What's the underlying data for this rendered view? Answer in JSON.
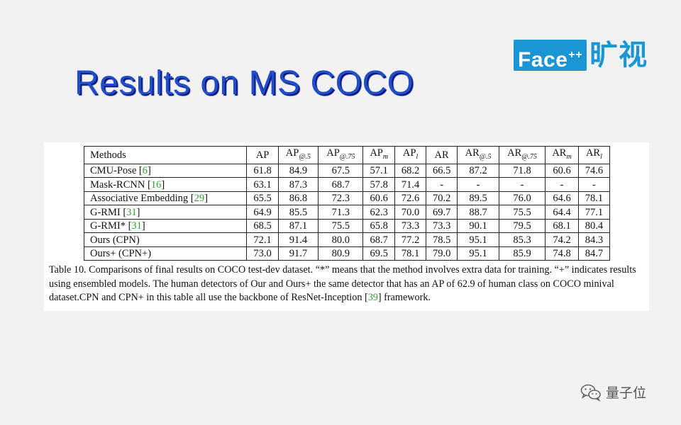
{
  "brand": {
    "face_text": "Face",
    "face_sup": "++",
    "cn_text": "旷视",
    "color": "#1a96d4"
  },
  "title": "Results on MS COCO",
  "table": {
    "headers": [
      {
        "base": "Methods",
        "sub": ""
      },
      {
        "base": "AP",
        "sub": ""
      },
      {
        "base": "AP",
        "sub": "@.5"
      },
      {
        "base": "AP",
        "sub": "@.75"
      },
      {
        "base": "AP",
        "sub": "m"
      },
      {
        "base": "AP",
        "sub": "l"
      },
      {
        "base": "AR",
        "sub": ""
      },
      {
        "base": "AR",
        "sub": "@.5"
      },
      {
        "base": "AR",
        "sub": "@.75"
      },
      {
        "base": "AR",
        "sub": "m"
      },
      {
        "base": "AR",
        "sub": "l"
      }
    ],
    "rows": [
      {
        "method": "CMU-Pose",
        "cite": "6",
        "values": [
          "61.8",
          "84.9",
          "67.5",
          "57.1",
          "68.2",
          "66.5",
          "87.2",
          "71.8",
          "60.6",
          "74.6"
        ]
      },
      {
        "method": "Mask-RCNN",
        "cite": "16",
        "values": [
          "63.1",
          "87.3",
          "68.7",
          "57.8",
          "71.4",
          "-",
          "-",
          "-",
          "-",
          "-"
        ]
      },
      {
        "method": "Associative Embedding",
        "cite": "29",
        "values": [
          "65.5",
          "86.8",
          "72.3",
          "60.6",
          "72.6",
          "70.2",
          "89.5",
          "76.0",
          "64.6",
          "78.1"
        ]
      },
      {
        "method": "G-RMI",
        "cite": "31",
        "values": [
          "64.9",
          "85.5",
          "71.3",
          "62.3",
          "70.0",
          "69.7",
          "88.7",
          "75.5",
          "64.4",
          "77.1"
        ]
      },
      {
        "method": "G-RMI*",
        "cite": "31",
        "values": [
          "68.5",
          "87.1",
          "75.5",
          "65.8",
          "73.3",
          "73.3",
          "90.1",
          "79.5",
          "68.1",
          "80.4"
        ]
      },
      {
        "method": "Ours (CPN)",
        "cite": "",
        "values": [
          "72.1",
          "91.4",
          "80.0",
          "68.7",
          "77.2",
          "78.5",
          "95.1",
          "85.3",
          "74.2",
          "84.3"
        ]
      },
      {
        "method": "Ours+ (CPN+)",
        "cite": "",
        "values": [
          "73.0",
          "91.7",
          "80.9",
          "69.5",
          "78.1",
          "79.0",
          "95.1",
          "85.9",
          "74.8",
          "84.7"
        ]
      }
    ]
  },
  "caption": {
    "before_cite": "Table 10. Comparisons of final results on COCO test-dev dataset. “*” means that the method involves extra data for training. “+” indicates results using ensembled models. The human detectors of Our and Ours+ the same detector that has an AP of 62.9 of human class on COCO minival dataset.CPN and CPN+ in this table all use the backbone of ResNet-Inception ",
    "cite": "39",
    "after_cite": " framework."
  },
  "watermark": {
    "icon": "wechat-icon",
    "text": "量子位"
  },
  "colors": {
    "title_blue": "#1f4ec7",
    "citation_green": "#2da42d",
    "background": "#f2f2f2"
  }
}
